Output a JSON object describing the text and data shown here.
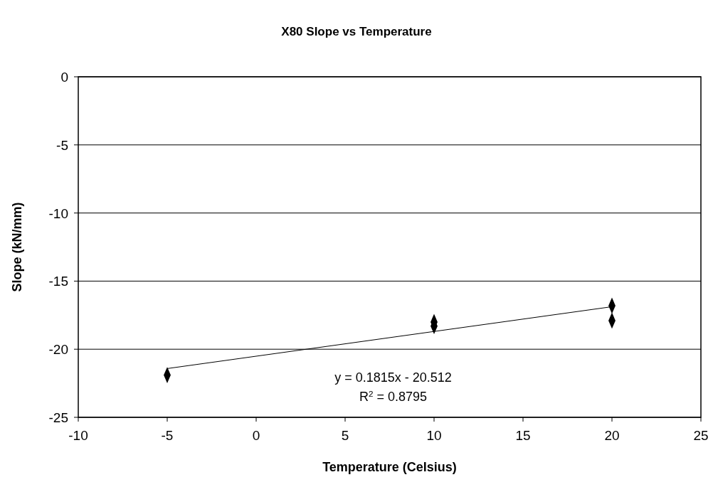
{
  "chart_data": {
    "type": "scatter",
    "title": "X80 Slope vs Temperature",
    "xlabel": "Temperature (Celsius)",
    "ylabel": "Slope (kN/mm)",
    "xlim": [
      -10,
      25
    ],
    "xticks": [
      -10,
      -5,
      0,
      5,
      10,
      15,
      20,
      25
    ],
    "ylim": [
      -25,
      0
    ],
    "yticks": [
      -25,
      -20,
      -15,
      -10,
      -5,
      0
    ],
    "grid": "y",
    "series": [
      {
        "color": "#000000",
        "marker": "diamond",
        "x": [
          -5,
          10,
          10,
          20,
          20
        ],
        "values": [
          -21.9,
          -18.0,
          -18.3,
          -16.8,
          -17.9
        ]
      },
      {
        "type": "line",
        "color": "#000000",
        "marker": "none",
        "line_style": "solid",
        "x": [
          -5,
          20
        ],
        "values": [
          -21.42,
          -16.88
        ]
      }
    ],
    "annotations": [
      "y = 0.1815x - 20.512",
      "R$^{2}$ = 0.8795"
    ]
  }
}
